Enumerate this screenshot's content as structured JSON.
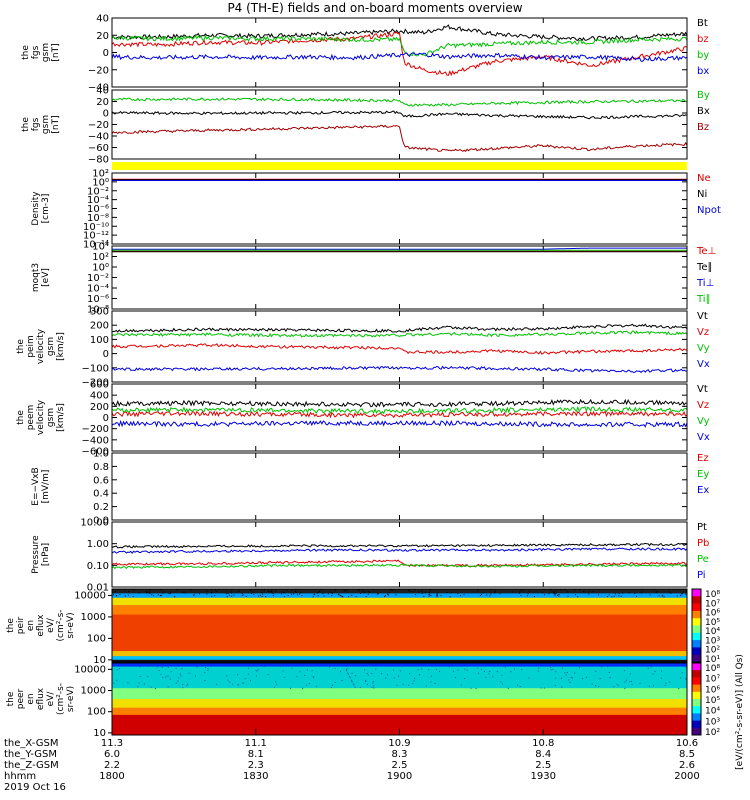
{
  "title": "P4 (TH-E) fields and on-board moments overview",
  "date_label": "2019 Oct 16",
  "colors": {
    "black": "#000000",
    "red": "#e00000",
    "green": "#00e000",
    "blue": "#0000e0",
    "darkred": "#a00000",
    "yellow": "#ffff00"
  },
  "chart_data": [
    {
      "type": "line",
      "name": "fgs-gsm",
      "ylabel": [
        "the",
        "fgs",
        "gsm",
        "[nT]"
      ],
      "yticks": [
        "40",
        "20",
        "0",
        "−20",
        "−40"
      ],
      "ylim": [
        -40,
        40
      ],
      "legend": [
        {
          "label": "Bt",
          "color": "#000000"
        },
        {
          "label": "bz",
          "color": "#e00000"
        },
        {
          "label": "by",
          "color": "#00c000"
        },
        {
          "label": "bx",
          "color": "#0000e0"
        }
      ],
      "series": [
        {
          "name": "Bt",
          "color": "#000000",
          "x": [
            0,
            10,
            20,
            30,
            40,
            50,
            60,
            65,
            70,
            80,
            90,
            100,
            110,
            120
          ],
          "y": [
            18,
            18,
            20,
            19,
            21,
            22,
            25,
            23,
            30,
            21,
            18,
            16,
            18,
            22
          ]
        },
        {
          "name": "bz",
          "color": "#e00000",
          "x": [
            0,
            10,
            20,
            30,
            40,
            50,
            60,
            61,
            65,
            70,
            80,
            90,
            100,
            110,
            120
          ],
          "y": [
            10,
            9,
            12,
            11,
            14,
            16,
            22,
            -12,
            -20,
            -25,
            -10,
            -5,
            -15,
            -5,
            5
          ]
        },
        {
          "name": "by",
          "color": "#00c000",
          "x": [
            0,
            10,
            20,
            30,
            40,
            50,
            60,
            61,
            65,
            70,
            80,
            90,
            100,
            110,
            120
          ],
          "y": [
            17,
            16,
            17,
            16,
            16,
            15,
            15,
            0,
            -3,
            8,
            10,
            12,
            12,
            15,
            16
          ]
        },
        {
          "name": "bx",
          "color": "#0000e0",
          "x": [
            0,
            10,
            20,
            30,
            40,
            50,
            60,
            65,
            70,
            80,
            90,
            100,
            110,
            120
          ],
          "y": [
            -5,
            -6,
            -5,
            -6,
            -5,
            -6,
            -3,
            -2,
            -5,
            -3,
            -6,
            -5,
            -8,
            -6
          ]
        }
      ]
    },
    {
      "type": "line",
      "name": "fgs-gsm-components",
      "ylabel": [
        "the",
        "fgs",
        "gsm",
        "[nT]"
      ],
      "yticks": [
        "40",
        "20",
        "0",
        "−20",
        "−40",
        "−60",
        "−80"
      ],
      "ylim": [
        -90,
        40
      ],
      "legend": [
        {
          "label": "By",
          "color": "#00c000"
        },
        {
          "label": "Bx",
          "color": "#000000"
        },
        {
          "label": "Bz",
          "color": "#a00000"
        }
      ],
      "series": [
        {
          "name": "By",
          "color": "#00c000",
          "x": [
            0,
            20,
            40,
            60,
            61,
            70,
            80,
            100,
            120
          ],
          "y": [
            22,
            23,
            22,
            20,
            12,
            12,
            15,
            18,
            20
          ]
        },
        {
          "name": "Bx",
          "color": "#000000",
          "x": [
            0,
            20,
            40,
            60,
            61,
            70,
            80,
            100,
            120
          ],
          "y": [
            -3,
            -4,
            -3,
            -2,
            -10,
            -5,
            -8,
            -12,
            -8
          ]
        },
        {
          "name": "Bz",
          "color": "#a00000",
          "x": [
            0,
            10,
            20,
            30,
            40,
            50,
            60,
            61,
            70,
            80,
            90,
            100,
            110,
            120
          ],
          "y": [
            -40,
            -38,
            -36,
            -34,
            -32,
            -30,
            -28,
            -68,
            -75,
            -70,
            -65,
            -72,
            -65,
            -62
          ]
        }
      ]
    },
    {
      "type": "line",
      "name": "density",
      "ylabel": [
        "Density",
        "[cm-3]"
      ],
      "yticks": [
        "10²",
        "10⁰",
        "10⁻²",
        "10⁻⁴",
        "10⁻⁶",
        "10⁻⁸",
        "10⁻¹⁰",
        "10⁻¹²",
        "10⁻¹⁴"
      ],
      "ylim": [
        -14,
        2
      ],
      "log": true,
      "legend": [
        {
          "label": "Ne",
          "color": "#e00000"
        },
        {
          "label": "Ni",
          "color": "#000000"
        },
        {
          "label": "Npot",
          "color": "#0000e0"
        }
      ],
      "series": [
        {
          "name": "Ne",
          "color": "#e00000",
          "x": [
            0,
            120
          ],
          "y": [
            0.6,
            0.6
          ]
        },
        {
          "name": "Ni",
          "color": "#000000",
          "x": [
            0,
            120
          ],
          "y": [
            0.5,
            0.5
          ]
        },
        {
          "name": "Npot",
          "color": "#0000e0",
          "x": [
            0,
            120
          ],
          "y": [
            0.3,
            0.3
          ]
        }
      ]
    },
    {
      "type": "line",
      "name": "temperature",
      "ylabel": [
        "moqt3",
        "[eV]"
      ],
      "yticks": [
        "10⁴",
        "10²",
        "10⁰",
        "10⁻²",
        "10⁻⁴",
        "10⁻⁶",
        "10⁻⁸"
      ],
      "ylim": [
        -8,
        4
      ],
      "log": true,
      "legend": [
        {
          "label": "Te⊥",
          "color": "#e00000"
        },
        {
          "label": "Te∥",
          "color": "#000000"
        },
        {
          "label": "Ti⊥",
          "color": "#0000e0"
        },
        {
          "label": "Ti∥",
          "color": "#00c000"
        }
      ],
      "series": [
        {
          "name": "Te⊥",
          "color": "#e00000",
          "x": [
            0,
            120
          ],
          "y": [
            3.0,
            3.0
          ]
        },
        {
          "name": "Te∥",
          "color": "#000000",
          "x": [
            0,
            120
          ],
          "y": [
            2.9,
            2.9
          ]
        },
        {
          "name": "Ti⊥",
          "color": "#0000e0",
          "x": [
            0,
            90,
            100,
            120
          ],
          "y": [
            3.4,
            3.4,
            3.6,
            3.6
          ]
        },
        {
          "name": "Ti∥",
          "color": "#00c000",
          "x": [
            0,
            120
          ],
          "y": [
            3.2,
            3.2
          ]
        }
      ]
    },
    {
      "type": "line",
      "name": "peim-velocity",
      "ylabel": [
        "the",
        "peim",
        "velocity",
        "gsm",
        "[km/s]"
      ],
      "yticks": [
        "300",
        "200",
        "100",
        "0",
        "−100",
        "−200"
      ],
      "ylim": [
        -200,
        300
      ],
      "legend": [
        {
          "label": "Vt",
          "color": "#000000"
        },
        {
          "label": "Vz",
          "color": "#e00000"
        },
        {
          "label": "Vy",
          "color": "#00c000"
        },
        {
          "label": "Vx",
          "color": "#0000e0"
        }
      ],
      "series": [
        {
          "name": "Vt",
          "color": "#000000",
          "x": [
            0,
            20,
            40,
            60,
            70,
            80,
            90,
            100,
            110,
            120
          ],
          "y": [
            160,
            170,
            165,
            160,
            185,
            170,
            175,
            190,
            200,
            180
          ]
        },
        {
          "name": "Vz",
          "color": "#e00000",
          "x": [
            0,
            20,
            40,
            60,
            61,
            70,
            80,
            90,
            100,
            110,
            120
          ],
          "y": [
            50,
            60,
            45,
            40,
            10,
            10,
            20,
            5,
            15,
            20,
            30
          ]
        },
        {
          "name": "Vy",
          "color": "#00c000",
          "x": [
            0,
            20,
            40,
            60,
            70,
            80,
            90,
            100,
            110,
            120
          ],
          "y": [
            130,
            135,
            125,
            130,
            140,
            130,
            135,
            145,
            150,
            140
          ]
        },
        {
          "name": "Vx",
          "color": "#0000e0",
          "x": [
            0,
            20,
            40,
            60,
            70,
            80,
            90,
            100,
            110,
            120
          ],
          "y": [
            -110,
            -110,
            -105,
            -100,
            -100,
            -105,
            -110,
            -120,
            -125,
            -115
          ]
        }
      ]
    },
    {
      "type": "line",
      "name": "peem-velocity",
      "ylabel": [
        "the",
        "peem",
        "velocity",
        "gsm",
        "[km/s]"
      ],
      "yticks": [
        "600",
        "400",
        "200",
        "0",
        "−200",
        "−400",
        "−600"
      ],
      "ylim": [
        -600,
        600
      ],
      "legend": [
        {
          "label": "Vt",
          "color": "#000000"
        },
        {
          "label": "Vz",
          "color": "#e00000"
        },
        {
          "label": "Vy",
          "color": "#00c000"
        },
        {
          "label": "Vx",
          "color": "#0000e0"
        }
      ],
      "series": [
        {
          "name": "Vt",
          "color": "#000000",
          "x": [
            0,
            20,
            40,
            60,
            80,
            100,
            120
          ],
          "y": [
            250,
            260,
            240,
            230,
            250,
            280,
            260
          ]
        },
        {
          "name": "Vz",
          "color": "#e00000",
          "x": [
            0,
            20,
            40,
            60,
            80,
            100,
            120
          ],
          "y": [
            60,
            70,
            50,
            40,
            60,
            70,
            60
          ]
        },
        {
          "name": "Vy",
          "color": "#00c000",
          "x": [
            0,
            20,
            40,
            60,
            80,
            100,
            120
          ],
          "y": [
            130,
            140,
            120,
            110,
            130,
            150,
            130
          ]
        },
        {
          "name": "Vx",
          "color": "#0000e0",
          "x": [
            0,
            20,
            40,
            60,
            80,
            100,
            120
          ],
          "y": [
            -110,
            -120,
            -100,
            -100,
            -110,
            -130,
            -120
          ]
        }
      ]
    },
    {
      "type": "line",
      "name": "efield",
      "ylabel": [
        "E=−VxB",
        "[mV/m]"
      ],
      "yticks": [
        "1.0",
        "0.8",
        "0.6",
        "0.4",
        "0.2",
        "0.0"
      ],
      "ylim": [
        0,
        1
      ],
      "legend": [
        {
          "label": "Ez",
          "color": "#e00000"
        },
        {
          "label": "Ey",
          "color": "#00c000"
        },
        {
          "label": "Ex",
          "color": "#0000e0"
        }
      ],
      "series": []
    },
    {
      "type": "line",
      "name": "pressure",
      "ylabel": [
        "Pressure",
        "[nPa]"
      ],
      "yticks": [
        "10.00",
        "1.00",
        "0.10",
        "0.01"
      ],
      "ylim": [
        -2,
        1
      ],
      "log": true,
      "legend": [
        {
          "label": "Pt",
          "color": "#000000"
        },
        {
          "label": "Pb",
          "color": "#e00000"
        },
        {
          "label": "Pe",
          "color": "#00c000"
        },
        {
          "label": "Pi",
          "color": "#0000e0"
        }
      ],
      "series": [
        {
          "name": "Pt",
          "color": "#000000",
          "x": [
            0,
            20,
            40,
            60,
            80,
            100,
            120
          ],
          "y": [
            -0.15,
            -0.12,
            -0.1,
            -0.1,
            -0.08,
            -0.05,
            -0.03
          ]
        },
        {
          "name": "Pb",
          "color": "#e00000",
          "x": [
            0,
            20,
            40,
            60,
            61,
            80,
            100,
            120
          ],
          "y": [
            -0.95,
            -0.92,
            -0.85,
            -0.8,
            -1.0,
            -1.0,
            -0.95,
            -0.9
          ]
        },
        {
          "name": "Pe",
          "color": "#00c000",
          "x": [
            0,
            20,
            40,
            60,
            80,
            100,
            120
          ],
          "y": [
            -1.1,
            -1.05,
            -1.0,
            -1.0,
            -1.05,
            -1.0,
            -1.0
          ]
        },
        {
          "name": "Pi",
          "color": "#0000e0",
          "x": [
            0,
            20,
            40,
            60,
            80,
            100,
            120
          ],
          "y": [
            -0.4,
            -0.35,
            -0.3,
            -0.3,
            -0.3,
            -0.25,
            -0.25
          ]
        }
      ]
    },
    {
      "type": "heatmap",
      "name": "peir-en-eflux",
      "ylabel": [
        "the",
        "peir",
        "en",
        "eflux",
        "eV/",
        "(cm²-s-",
        "sr-eV)"
      ],
      "yticks": [
        "10000",
        "1000",
        "100",
        "10"
      ],
      "ylim_log": [
        1,
        4
      ],
      "colorbar_ticks": [
        "10⁸",
        "10⁷",
        "10⁶",
        "10⁵",
        "10⁴",
        "10³",
        "10²",
        "10¹"
      ],
      "colorbar_label": "[eV/(cm²-s-sr-eV)] (All Qs)"
    },
    {
      "type": "heatmap",
      "name": "peer-en-eflux",
      "ylabel": [
        "the",
        "peer",
        "en",
        "eflux",
        "eV/",
        "(cm²-s-",
        "sr-eV)"
      ],
      "yticks": [
        "10000",
        "1000",
        "100",
        "10"
      ],
      "ylim_log": [
        1,
        4
      ],
      "colorbar_ticks": [
        "10⁸",
        "10⁷",
        "10⁶",
        "10⁵",
        "10⁴",
        "10³",
        "10²"
      ],
      "colorbar_label": "[eV/(cm²-s-sr-eV)]"
    }
  ],
  "x_axis": {
    "ticks_min": [
      0,
      30,
      60,
      90,
      120
    ],
    "rows": [
      {
        "label": "the_X-GSM",
        "values": [
          "11.3",
          "11.1",
          "10.9",
          "10.8",
          "10.6"
        ]
      },
      {
        "label": "the_Y-GSM",
        "values": [
          "6.0",
          "8.1",
          "8.3",
          "8.4",
          "8.5"
        ]
      },
      {
        "label": "the_Z-GSM",
        "values": [
          "2.2",
          "2.3",
          "2.5",
          "2.5",
          "2.6"
        ]
      },
      {
        "label": "hhmm",
        "values": [
          "1800",
          "1830",
          "1900",
          "1930",
          "2000"
        ]
      }
    ]
  }
}
